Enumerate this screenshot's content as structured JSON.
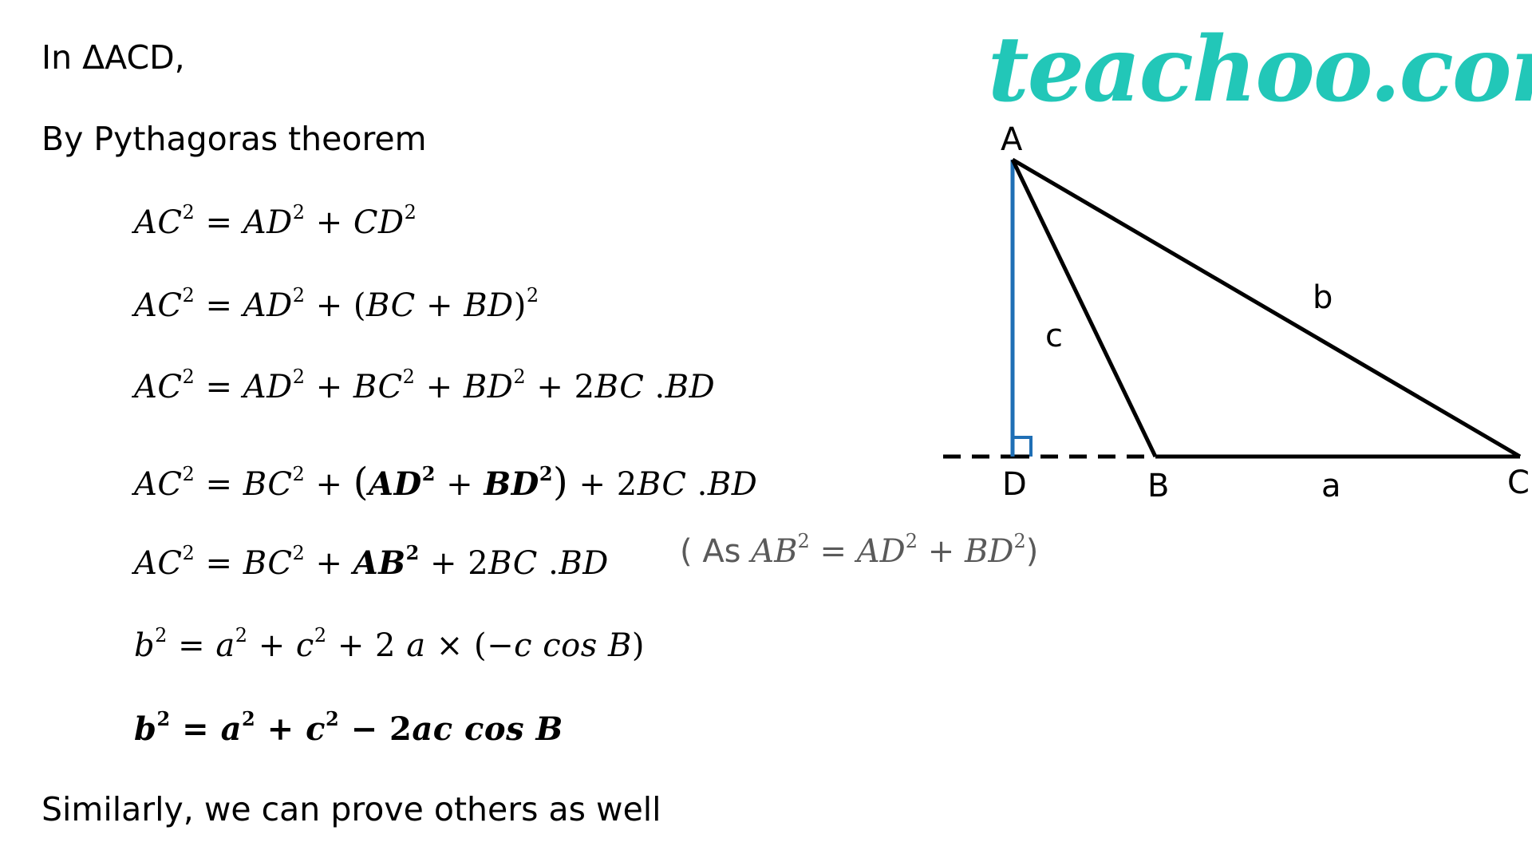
{
  "brand": {
    "logo_text": "teachoo.com",
    "logo_color": "#22c7b8"
  },
  "proof": {
    "intro": "In ΔACD,",
    "theorem": "By Pythagoras theorem",
    "steps": [
      {
        "lhs": "AC",
        "text_after": "= AD² + CD²"
      },
      {
        "lhs": "AC",
        "text_after": "= AD² + (BC + BD)²"
      },
      {
        "lhs": "AC",
        "text_after": "= AD² + BC² + BD² + 2BC . BD"
      },
      {
        "lhs": "AC",
        "text_after": "= BC² + (AD² + BD²) + 2BC . BD"
      },
      {
        "lhs": "AC",
        "text_after": "= BC² + AB² + 2BC . BD"
      },
      {
        "lhs": "b",
        "text_after": "= a² + c² + 2 a × (−c cos B)"
      },
      {
        "lhs": "b",
        "text_after": "= a² + c² − 2ac cos B"
      }
    ],
    "note": "( As AB² = AD² + BD²)",
    "conclusion": "Similarly, we can prove others as well"
  },
  "diagram": {
    "vertices": {
      "A": "A",
      "B": "B",
      "C": "C",
      "D": "D"
    },
    "sides": {
      "a": "a",
      "b": "b",
      "c": "c"
    },
    "colors": {
      "altitude": "#1f6fb5",
      "sides": "#000000"
    }
  }
}
